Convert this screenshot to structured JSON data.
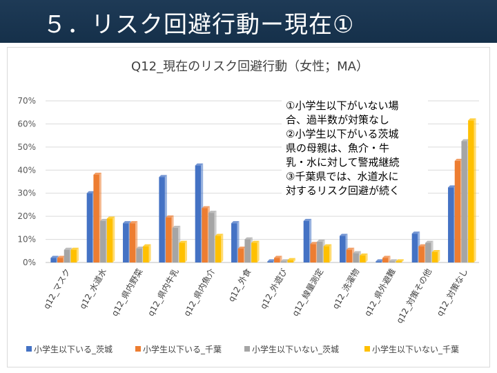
{
  "slide": {
    "title": "５．リスク回避行動ー現在①"
  },
  "note": {
    "lines": [
      "①小学生以下がいない場",
      "合、過半数が対策なし",
      "②小学生以下がいる茨城",
      "県の母親は、魚介・牛",
      "乳・水に対して警戒継続",
      "③千葉県では、水道水に",
      "対するリスク回避が続く"
    ]
  },
  "chart_data": {
    "type": "bar",
    "title": "Q12_現在のリスク回避行動（女性；MA）",
    "categories": [
      "q12_マスク",
      "q12_水道水",
      "q12_県内野菜",
      "q12_県内牛乳",
      "q12_県内魚介",
      "q12_外食",
      "q12_外遊び",
      "q12_線量測定",
      "q12_洗濯物",
      "q12_県外避難",
      "q12_対策その他",
      "q12_対策なし"
    ],
    "series": [
      {
        "name": "小学生以下いる_茨城",
        "color": "#4472c4",
        "values": [
          2,
          30,
          17,
          37,
          42,
          17,
          0.5,
          18,
          11.5,
          0.5,
          12.5,
          32.5
        ]
      },
      {
        "name": "小学生以下いる_千葉",
        "color": "#ed7d31",
        "values": [
          2,
          38,
          17,
          19.5,
          23.5,
          6,
          2,
          8,
          5.5,
          2,
          7,
          44
        ]
      },
      {
        "name": "小学生以下いない_茨城",
        "color": "#a5a5a5",
        "values": [
          5.5,
          18,
          6,
          15,
          21.5,
          10,
          0.5,
          9,
          4,
          0.5,
          8.5,
          52.5
        ]
      },
      {
        "name": "小学生以下いない_千葉",
        "color": "#ffc000",
        "values": [
          5.5,
          19,
          7,
          8.5,
          11.5,
          8.5,
          1,
          7,
          3,
          0.5,
          4.5,
          61.5
        ]
      }
    ],
    "ylim": [
      0,
      70
    ],
    "yticks": [
      "0%",
      "10%",
      "20%",
      "30%",
      "40%",
      "50%",
      "60%",
      "70%"
    ],
    "grid": true,
    "legend_position": "bottom"
  }
}
